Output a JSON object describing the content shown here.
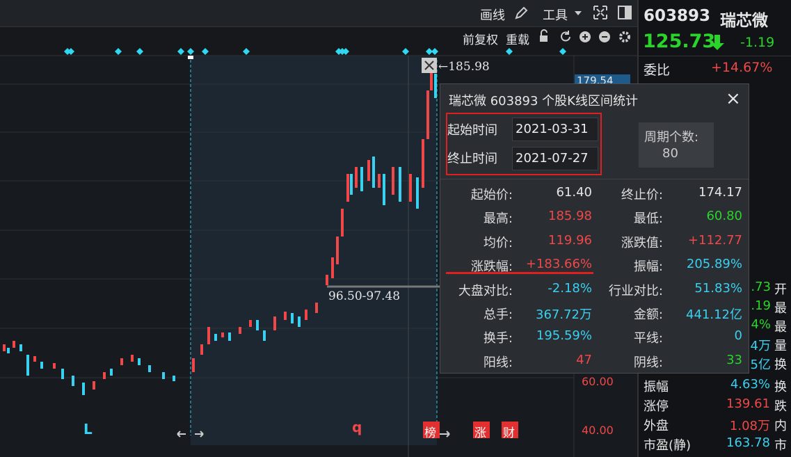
{
  "toolbar": {
    "draw": "画线",
    "tools": "工具",
    "adjust": "前复权",
    "reload": "重载"
  },
  "quote": {
    "code": "603893",
    "name": "瑞芯微",
    "price": "125.73",
    "change": "-1.19",
    "weibi_label": "委比",
    "weibi": "+14.67%"
  },
  "chart": {
    "high_label": "←185.98",
    "range_label": "96.50-97.48",
    "axis_top": "179.54",
    "axis": [
      "60.00",
      "40.00"
    ],
    "markers": [
      "L",
      "q",
      "榜",
      "涨",
      "财"
    ]
  },
  "dialog": {
    "title": "瑞芯微  603893  个股K线区间统计",
    "close": "×",
    "start_label": "起始时间",
    "start": "2021-03-31",
    "end_label": "终止时间",
    "end": "2021-07-27",
    "period_label": "周期个数:",
    "period": "80",
    "stats": [
      [
        {
          "label": "起始价:",
          "value": "61.40"
        },
        {
          "label": "终止价:",
          "value": "174.17"
        }
      ],
      [
        {
          "label": "最高:",
          "value": "185.98"
        },
        {
          "label": "最低:",
          "value": "60.80"
        }
      ],
      [
        {
          "label": "均价:",
          "value": "119.96"
        },
        {
          "label": "涨跌值:",
          "value": "+112.77"
        }
      ],
      [
        {
          "label": "涨跌幅:",
          "value": "+183.66%"
        },
        {
          "label": "振幅:",
          "value": "205.89%"
        }
      ],
      [
        {
          "label": "大盘对比:",
          "value": "-2.18%"
        },
        {
          "label": "行业对比:",
          "value": "51.83%"
        }
      ],
      [
        {
          "label": "总手:",
          "value": "367.72万"
        },
        {
          "label": "金额:",
          "value": "441.12亿"
        }
      ],
      [
        {
          "label": "换手:",
          "value": "195.59%"
        },
        {
          "label": "平线:",
          "value": "0"
        }
      ],
      [
        {
          "label": "阳线:",
          "value": "47"
        },
        {
          "label": "阴线:",
          "value": "33"
        }
      ]
    ]
  },
  "side_fragments": [
    {
      "value": ".73",
      "tail": "开"
    },
    {
      "value": ".19",
      "tail": "最"
    },
    {
      "value": "4%",
      "tail": "最"
    },
    {
      "value": "4万",
      "tail": "量"
    },
    {
      "value": "5亿",
      "tail": "换"
    }
  ],
  "side_rows": [
    {
      "label": "振幅",
      "value": "4.63%",
      "tail": "换"
    },
    {
      "label": "涨停",
      "value": "139.61",
      "tail": "跌"
    },
    {
      "label": "外盘",
      "value": "1.08万",
      "tail": "内"
    },
    {
      "label": "市盈(静)",
      "value": "163.78",
      "tail": "市"
    }
  ]
}
